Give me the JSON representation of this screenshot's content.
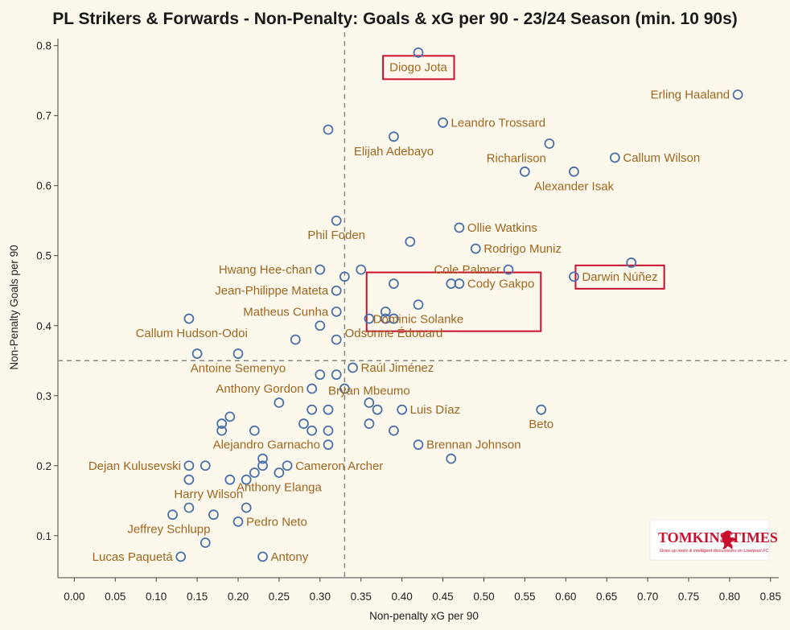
{
  "chart_data": {
    "type": "scatter",
    "title": "PL Strikers & Forwards - Non-Penalty: Goals & xG per 90 - 23/24 Season (min. 10 90s)",
    "xlabel": "Non-penalty xG per 90",
    "ylabel": "Non-Penalty Goals per 90",
    "xlim": [
      -0.02,
      0.86
    ],
    "ylim": [
      0.04,
      0.81
    ],
    "xticks": [
      0.0,
      0.05,
      0.1,
      0.15,
      0.2,
      0.25,
      0.3,
      0.35,
      0.4,
      0.45,
      0.5,
      0.55,
      0.6,
      0.65,
      0.7,
      0.75,
      0.8,
      0.85
    ],
    "xtick_labels": [
      "0.00",
      "0.05",
      "0.10",
      "0.15",
      "0.20",
      "0.25",
      "0.30",
      "0.35",
      "0.40",
      "0.45",
      "0.50",
      "0.55",
      "0.60",
      "0.65",
      "0.70",
      "0.75",
      "0.80",
      "0.85"
    ],
    "yticks": [
      0.1,
      0.2,
      0.3,
      0.4,
      0.5,
      0.6,
      0.7,
      0.8
    ],
    "ytick_labels": [
      "0.1",
      "0.2",
      "0.3",
      "0.4",
      "0.5",
      "0.6",
      "0.7",
      "0.8"
    ],
    "reference_lines": {
      "x": 0.33,
      "y": 0.35
    },
    "grid": false,
    "marker_color": "#4a72a8",
    "label_color": "#a0651e",
    "highlight_color": "#c8102e",
    "points": [
      {
        "x": 0.42,
        "y": 0.79,
        "label": "Diogo Jota",
        "label_pos": "below",
        "highlight": true
      },
      {
        "x": 0.81,
        "y": 0.73,
        "label": "Erling Haaland",
        "label_pos": "left"
      },
      {
        "x": 0.45,
        "y": 0.69,
        "label": "Leandro Trossard",
        "label_pos": "right"
      },
      {
        "x": 0.31,
        "y": 0.68
      },
      {
        "x": 0.39,
        "y": 0.67,
        "label": "Elijah Adebayo",
        "label_pos": "below"
      },
      {
        "x": 0.58,
        "y": 0.66,
        "label": "Richarlison",
        "label_pos": "below-left"
      },
      {
        "x": 0.66,
        "y": 0.64,
        "label": "Callum Wilson",
        "label_pos": "right"
      },
      {
        "x": 0.55,
        "y": 0.62
      },
      {
        "x": 0.61,
        "y": 0.62,
        "label": "Alexander Isak",
        "label_pos": "below"
      },
      {
        "x": 0.32,
        "y": 0.55,
        "label": "Phil Foden",
        "label_pos": "below"
      },
      {
        "x": 0.47,
        "y": 0.54,
        "label": "Ollie Watkins",
        "label_pos": "right"
      },
      {
        "x": 0.41,
        "y": 0.52
      },
      {
        "x": 0.49,
        "y": 0.51,
        "label": "Rodrigo Muniz",
        "label_pos": "right"
      },
      {
        "x": 0.68,
        "y": 0.49
      },
      {
        "x": 0.3,
        "y": 0.48,
        "label": "Hwang Hee-chan",
        "label_pos": "left"
      },
      {
        "x": 0.35,
        "y": 0.48
      },
      {
        "x": 0.53,
        "y": 0.48,
        "label": "Cole Palmer",
        "label_pos": "left"
      },
      {
        "x": 0.33,
        "y": 0.47
      },
      {
        "x": 0.61,
        "y": 0.47,
        "label": "Darwin Núñez",
        "label_pos": "right",
        "highlight": true
      },
      {
        "x": 0.39,
        "y": 0.46
      },
      {
        "x": 0.46,
        "y": 0.46
      },
      {
        "x": 0.47,
        "y": 0.46,
        "label": "Cody Gakpo",
        "label_pos": "right",
        "highlight": true
      },
      {
        "x": 0.32,
        "y": 0.45,
        "label": "Jean-Philippe Mateta",
        "label_pos": "left"
      },
      {
        "x": 0.42,
        "y": 0.43,
        "label": "Dominic Solanke",
        "label_pos": "below",
        "highlight": true
      },
      {
        "x": 0.32,
        "y": 0.42,
        "label": "Matheus Cunha",
        "label_pos": "left"
      },
      {
        "x": 0.38,
        "y": 0.42
      },
      {
        "x": 0.14,
        "y": 0.41
      },
      {
        "x": 0.36,
        "y": 0.41
      },
      {
        "x": 0.38,
        "y": 0.41
      },
      {
        "x": 0.39,
        "y": 0.41,
        "label": "Odsonne Édouard",
        "label_pos": "below"
      },
      {
        "x": 0.3,
        "y": 0.4,
        "label": "Callum Hudson-Odoi",
        "label_pos": "left-far"
      },
      {
        "x": 0.27,
        "y": 0.38
      },
      {
        "x": 0.32,
        "y": 0.38
      },
      {
        "x": 0.15,
        "y": 0.36
      },
      {
        "x": 0.2,
        "y": 0.36,
        "label": "Antoine Semenyo",
        "label_pos": "below"
      },
      {
        "x": 0.34,
        "y": 0.34,
        "label": "Raúl Jiménez",
        "label_pos": "right"
      },
      {
        "x": 0.3,
        "y": 0.33
      },
      {
        "x": 0.32,
        "y": 0.33
      },
      {
        "x": 0.29,
        "y": 0.31,
        "label": "Anthony Gordon",
        "label_pos": "left"
      },
      {
        "x": 0.33,
        "y": 0.31
      },
      {
        "x": 0.36,
        "y": 0.29,
        "label": "Bryan Mbeumo",
        "label_pos": "above"
      },
      {
        "x": 0.25,
        "y": 0.29
      },
      {
        "x": 0.29,
        "y": 0.28
      },
      {
        "x": 0.31,
        "y": 0.28
      },
      {
        "x": 0.37,
        "y": 0.28
      },
      {
        "x": 0.4,
        "y": 0.28,
        "label": "Luis Díaz",
        "label_pos": "right"
      },
      {
        "x": 0.57,
        "y": 0.28,
        "label": "Beto",
        "label_pos": "below"
      },
      {
        "x": 0.19,
        "y": 0.27
      },
      {
        "x": 0.18,
        "y": 0.26
      },
      {
        "x": 0.28,
        "y": 0.26
      },
      {
        "x": 0.36,
        "y": 0.26
      },
      {
        "x": 0.18,
        "y": 0.25
      },
      {
        "x": 0.22,
        "y": 0.25
      },
      {
        "x": 0.29,
        "y": 0.25
      },
      {
        "x": 0.31,
        "y": 0.25
      },
      {
        "x": 0.39,
        "y": 0.25
      },
      {
        "x": 0.31,
        "y": 0.23,
        "label": "Alejandro Garnacho",
        "label_pos": "left"
      },
      {
        "x": 0.42,
        "y": 0.23,
        "label": "Brennan Johnson",
        "label_pos": "right"
      },
      {
        "x": 0.23,
        "y": 0.21
      },
      {
        "x": 0.46,
        "y": 0.21
      },
      {
        "x": 0.14,
        "y": 0.2,
        "label": "Dejan Kulusevski",
        "label_pos": "left"
      },
      {
        "x": 0.16,
        "y": 0.2
      },
      {
        "x": 0.23,
        "y": 0.2
      },
      {
        "x": 0.26,
        "y": 0.2,
        "label": "Cameron Archer",
        "label_pos": "right"
      },
      {
        "x": 0.22,
        "y": 0.19
      },
      {
        "x": 0.25,
        "y": 0.19,
        "label": "Anthony Elanga",
        "label_pos": "below"
      },
      {
        "x": 0.14,
        "y": 0.18
      },
      {
        "x": 0.19,
        "y": 0.18
      },
      {
        "x": 0.21,
        "y": 0.18,
        "label": "Harry Wilson",
        "label_pos": "below-left"
      },
      {
        "x": 0.21,
        "y": 0.14
      },
      {
        "x": 0.14,
        "y": 0.14
      },
      {
        "x": 0.12,
        "y": 0.13
      },
      {
        "x": 0.17,
        "y": 0.13,
        "label": "Jeffrey Schlupp",
        "label_pos": "below-left"
      },
      {
        "x": 0.2,
        "y": 0.12,
        "label": "Pedro Neto",
        "label_pos": "right"
      },
      {
        "x": 0.16,
        "y": 0.09
      },
      {
        "x": 0.13,
        "y": 0.07,
        "label": "Lucas Paquetá",
        "label_pos": "left"
      },
      {
        "x": 0.23,
        "y": 0.07,
        "label": "Antony",
        "label_pos": "right"
      }
    ],
    "highlight_boxes": [
      {
        "labels": [
          "Diogo Jota"
        ]
      },
      {
        "labels": [
          "Darwin Núñez"
        ]
      },
      {
        "labels": [
          "Cody Gakpo",
          "Dominic Solanke"
        ]
      }
    ]
  },
  "logo": {
    "name": "TOMKINS TIMES",
    "tagline": "Grow up news & intelligent discussions on Liverpool FC",
    "icon": "liverbird-icon"
  }
}
